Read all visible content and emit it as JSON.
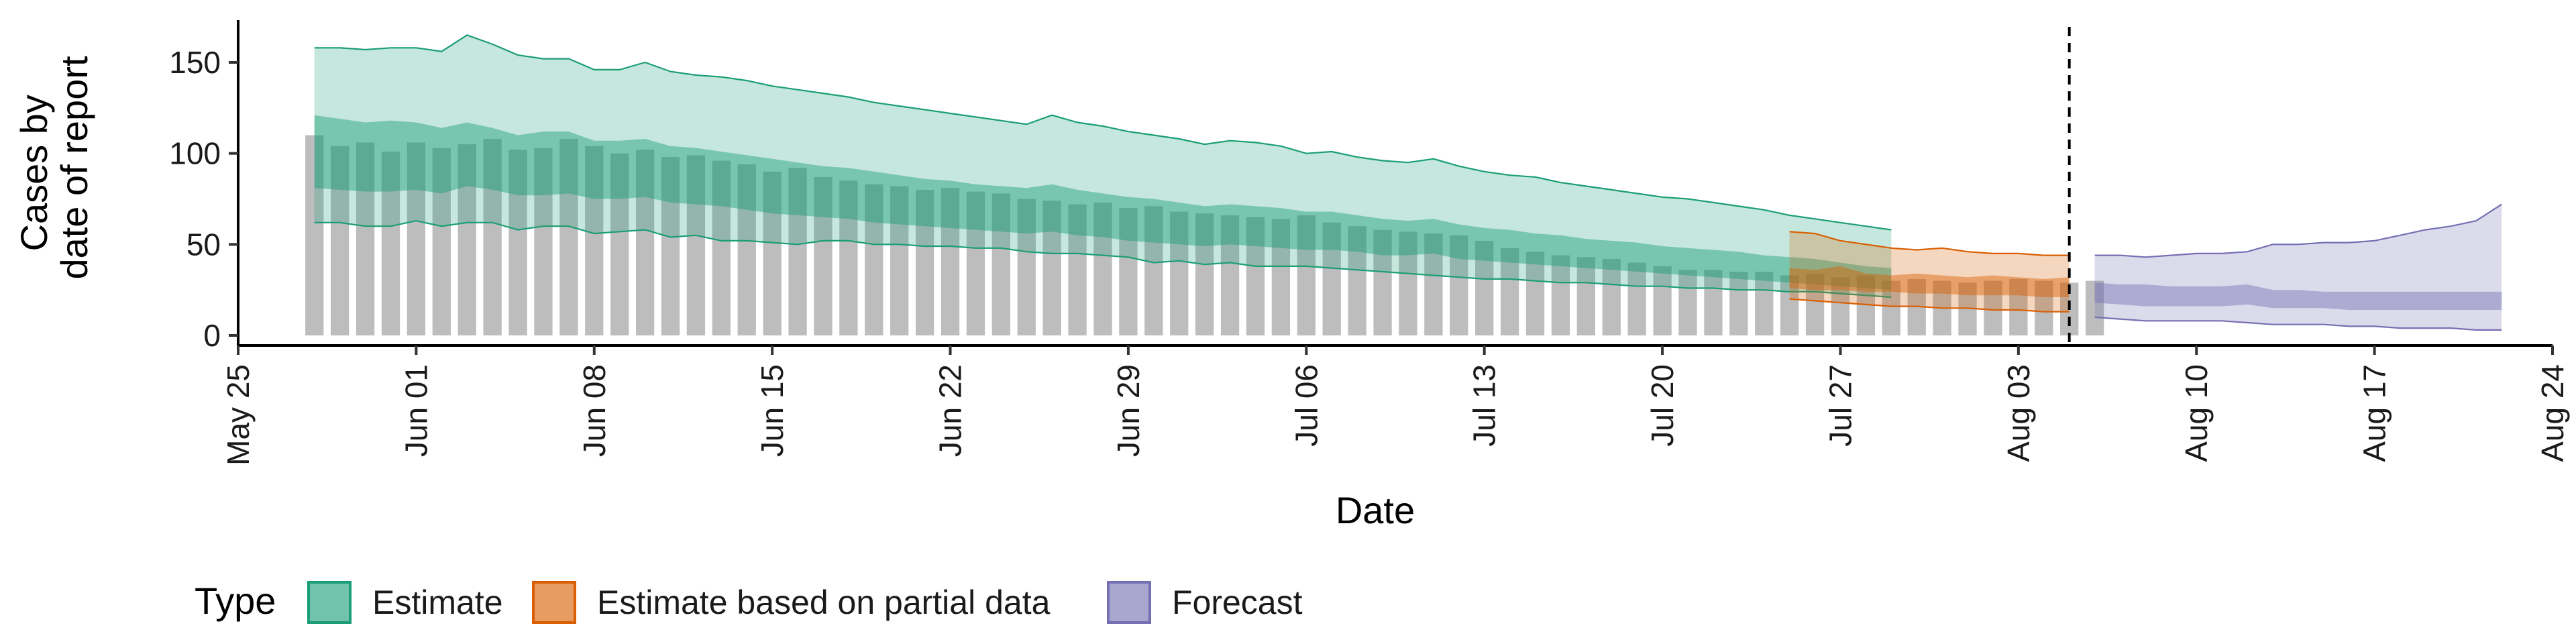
{
  "chart_data": {
    "type": "area",
    "xlabel": "Date",
    "ylabel_lines": [
      "Cases by",
      "date of report"
    ],
    "ylim": [
      0,
      170
    ],
    "yticks": [
      0,
      50,
      100,
      150
    ],
    "x_range": [
      "2020-05-25",
      "2020-08-24"
    ],
    "x_ticks": [
      {
        "date": "2020-05-25",
        "label": "May 25"
      },
      {
        "date": "2020-06-01",
        "label": "Jun 01"
      },
      {
        "date": "2020-06-08",
        "label": "Jun 08"
      },
      {
        "date": "2020-06-15",
        "label": "Jun 15"
      },
      {
        "date": "2020-06-22",
        "label": "Jun 22"
      },
      {
        "date": "2020-06-29",
        "label": "Jun 29"
      },
      {
        "date": "2020-07-06",
        "label": "Jul 06"
      },
      {
        "date": "2020-07-13",
        "label": "Jul 13"
      },
      {
        "date": "2020-07-20",
        "label": "Jul 20"
      },
      {
        "date": "2020-07-27",
        "label": "Jul 27"
      },
      {
        "date": "2020-08-03",
        "label": "Aug 03"
      },
      {
        "date": "2020-08-10",
        "label": "Aug 10"
      },
      {
        "date": "2020-08-17",
        "label": "Aug 17"
      },
      {
        "date": "2020-08-24",
        "label": "Aug 24"
      }
    ],
    "forecast_start_line": "2020-08-05",
    "legend": {
      "title": "Type",
      "position": "bottom",
      "items": [
        {
          "label": "Estimate",
          "color": "#1b9e77"
        },
        {
          "label": "Estimate based on partial data",
          "color": "#d95f02"
        },
        {
          "label": "Forecast",
          "color": "#7570b3"
        }
      ]
    },
    "bars": {
      "color": "#bdbdbd",
      "start_date": "2020-05-28",
      "values": [
        110,
        104,
        106,
        101,
        106,
        103,
        105,
        108,
        102,
        103,
        108,
        104,
        100,
        102,
        98,
        99,
        96,
        94,
        90,
        92,
        87,
        85,
        83,
        82,
        80,
        81,
        79,
        78,
        75,
        74,
        72,
        73,
        70,
        71,
        68,
        67,
        66,
        65,
        64,
        66,
        62,
        60,
        58,
        57,
        56,
        55,
        52,
        48,
        46,
        44,
        43,
        42,
        40,
        38,
        36,
        36,
        35,
        35,
        33,
        34,
        32,
        33,
        30,
        31,
        30,
        29,
        30,
        31,
        30,
        29,
        30
      ]
    },
    "series": [
      {
        "name": "Estimate",
        "color": "#1b9e77",
        "start_date": "2020-05-28",
        "outer_upper": [
          158,
          158,
          157,
          158,
          158,
          156,
          165,
          160,
          154,
          152,
          152,
          146,
          146,
          150,
          145,
          143,
          142,
          140,
          137,
          135,
          133,
          131,
          128,
          126,
          124,
          122,
          120,
          118,
          116,
          121,
          117,
          115,
          112,
          110,
          108,
          105,
          107,
          106,
          104,
          100,
          101,
          98,
          96,
          95,
          97,
          93,
          90,
          88,
          87,
          84,
          82,
          80,
          78,
          76,
          75,
          73,
          71,
          69,
          66,
          64,
          62,
          60,
          58
        ],
        "inner_upper": [
          121,
          119,
          117,
          118,
          117,
          114,
          117,
          114,
          110,
          112,
          112,
          107,
          107,
          108,
          104,
          103,
          101,
          99,
          97,
          95,
          93,
          92,
          90,
          88,
          86,
          85,
          83,
          82,
          81,
          83,
          80,
          78,
          76,
          75,
          73,
          71,
          72,
          71,
          70,
          68,
          68,
          66,
          64,
          63,
          64,
          61,
          59,
          58,
          56,
          55,
          53,
          52,
          51,
          49,
          48,
          47,
          46,
          44,
          43,
          42,
          40,
          38,
          37
        ],
        "inner_lower": [
          81,
          80,
          79,
          79,
          80,
          78,
          82,
          80,
          77,
          77,
          78,
          75,
          75,
          76,
          73,
          72,
          71,
          69,
          67,
          66,
          65,
          64,
          62,
          61,
          60,
          59,
          58,
          57,
          56,
          57,
          55,
          54,
          52,
          51,
          50,
          49,
          50,
          49,
          48,
          47,
          47,
          46,
          44,
          44,
          45,
          42,
          41,
          40,
          39,
          38,
          37,
          36,
          35,
          34,
          33,
          32,
          31,
          30,
          29,
          28,
          27,
          26,
          25
        ],
        "outer_lower": [
          62,
          62,
          60,
          60,
          63,
          60,
          62,
          62,
          58,
          60,
          60,
          56,
          57,
          58,
          54,
          55,
          52,
          52,
          51,
          50,
          52,
          52,
          50,
          50,
          49,
          49,
          48,
          48,
          46,
          45,
          45,
          44,
          43,
          40,
          41,
          39,
          40,
          38,
          38,
          38,
          37,
          36,
          35,
          34,
          33,
          32,
          31,
          31,
          30,
          29,
          29,
          28,
          27,
          27,
          26,
          26,
          25,
          25,
          24,
          24,
          23,
          22,
          21
        ]
      },
      {
        "name": "Estimate based on partial data",
        "color": "#d95f02",
        "start_date": "2020-07-25",
        "outer_upper": [
          57,
          56,
          52,
          50,
          48,
          47,
          48,
          46,
          45,
          45,
          44,
          44
        ],
        "inner_upper": [
          37,
          36,
          38,
          34,
          33,
          34,
          33,
          32,
          33,
          32,
          31,
          32
        ],
        "inner_lower": [
          26,
          25,
          25,
          24,
          24,
          23,
          23,
          22,
          22,
          22,
          21,
          21
        ],
        "outer_lower": [
          20,
          19,
          18,
          17,
          16,
          16,
          15,
          15,
          14,
          14,
          13,
          13
        ]
      },
      {
        "name": "Forecast",
        "color": "#7570b3",
        "start_date": "2020-08-06",
        "outer_upper": [
          44,
          44,
          43,
          44,
          45,
          45,
          46,
          50,
          50,
          51,
          51,
          52,
          55,
          58,
          60,
          63,
          72
        ],
        "inner_upper": [
          29,
          28,
          28,
          27,
          27,
          27,
          28,
          25,
          25,
          24,
          24,
          24,
          24,
          24,
          24,
          24,
          24
        ],
        "inner_lower": [
          18,
          17,
          16,
          16,
          16,
          16,
          17,
          15,
          15,
          15,
          14,
          14,
          14,
          14,
          14,
          14,
          14
        ],
        "outer_lower": [
          10,
          9,
          8,
          8,
          8,
          8,
          7,
          6,
          6,
          6,
          5,
          5,
          4,
          4,
          4,
          3,
          3
        ]
      }
    ]
  }
}
